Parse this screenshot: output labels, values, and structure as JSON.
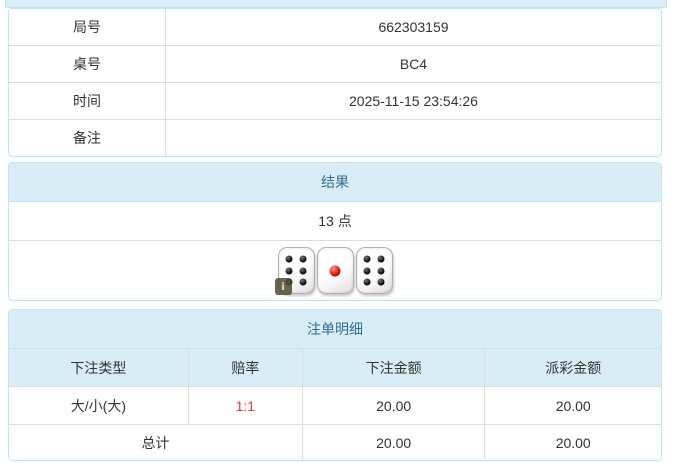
{
  "colors": {
    "header_bg": "#d9edf7",
    "header_text": "#31708f",
    "panel_border": "#bce8f1",
    "divider": "#dddddd",
    "body_text": "#333333",
    "odds_red": "#e4393c"
  },
  "info_table": {
    "rows": [
      {
        "label": "局号",
        "value": "662303159"
      },
      {
        "label": "桌号",
        "value": "BC4"
      },
      {
        "label": "时间",
        "value": "2025-11-15 23:54:26"
      },
      {
        "label": "备注",
        "value": ""
      }
    ]
  },
  "result_panel": {
    "title": "结果",
    "points_text": "13 点",
    "dice": [
      6,
      1,
      6
    ],
    "info_icon_label": "i"
  },
  "bets_panel": {
    "title": "注单明细",
    "columns": [
      "下注类型",
      "赔率",
      "下注金额",
      "派彩金额"
    ],
    "rows": [
      {
        "bet_type": "大/小(大)",
        "odds": "1:1",
        "bet_amount": "20.00",
        "payout": "20.00"
      }
    ],
    "total": {
      "label": "总计",
      "bet_amount": "20.00",
      "payout": "20.00"
    }
  }
}
